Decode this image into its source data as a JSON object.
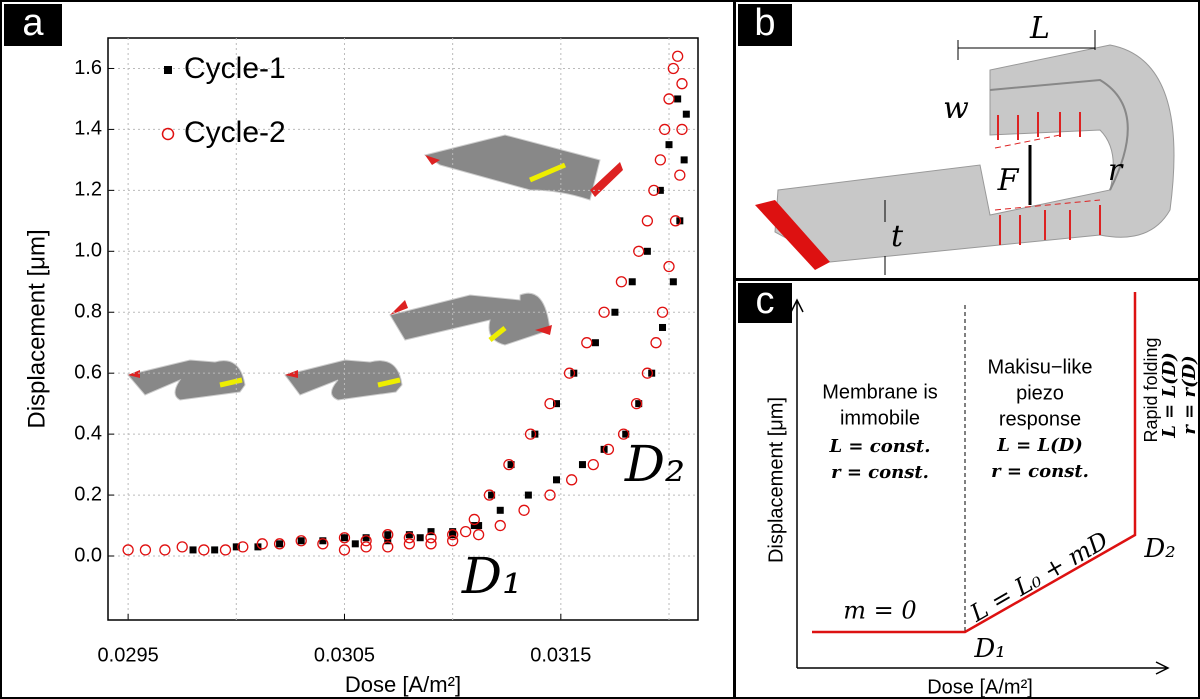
{
  "chart_data": {
    "type": "scatter",
    "xlabel": "Dose [A/m²]",
    "ylabel": "Displacement [μm]",
    "xlim": [
      0.029407,
      0.032134
    ],
    "ylim": [
      -0.21,
      1.7
    ],
    "xticks": [
      0.0295,
      0.0305,
      0.0315
    ],
    "xgrid_minor": [
      0.03,
      0.031,
      0.032
    ],
    "yticks": [
      {
        "value": 0,
        "label": "0.0"
      },
      {
        "value": 0.2,
        "label": "0.2"
      },
      {
        "value": 0.4,
        "label": "0.4"
      },
      {
        "value": 0.6,
        "label": "0.6"
      },
      {
        "value": 0.8,
        "label": "0.8"
      },
      {
        "value": 1,
        "label": "1.0"
      },
      {
        "value": 1.2,
        "label": "1.2"
      },
      {
        "value": 1.4,
        "label": "1.4"
      },
      {
        "value": 1.6,
        "label": "1.6"
      }
    ],
    "grid": true,
    "legend": "upper left",
    "annotations": [
      "D₁",
      "D₂"
    ],
    "series": [
      {
        "name": "Cycle-1",
        "color": "#000000",
        "marker": "square",
        "x": [
          0.0298,
          0.0299,
          0.03,
          0.0301,
          0.0302,
          0.0303,
          0.0304,
          0.0305,
          0.0306,
          0.0307,
          0.0308,
          0.0309,
          0.031,
          0.0311,
          0.03118,
          0.03127,
          0.03138,
          0.03148,
          0.03156,
          0.03166,
          0.03175,
          0.03183,
          0.0319,
          0.03196,
          0.032,
          0.03204,
          0.03208,
          0.03207,
          0.03205,
          0.03202,
          0.03197,
          0.03192,
          0.03186,
          0.0318,
          0.0317,
          0.0316,
          0.03148,
          0.03135,
          0.03122,
          0.03112,
          0.031,
          0.03085,
          0.0307,
          0.03055
        ],
        "values": [
          0.02,
          0.02,
          0.03,
          0.03,
          0.04,
          0.05,
          0.05,
          0.06,
          0.06,
          0.07,
          0.07,
          0.08,
          0.08,
          0.1,
          0.2,
          0.3,
          0.4,
          0.5,
          0.6,
          0.7,
          0.8,
          0.9,
          1.0,
          1.2,
          1.35,
          1.5,
          1.45,
          1.3,
          1.1,
          0.9,
          0.75,
          0.6,
          0.5,
          0.4,
          0.35,
          0.3,
          0.25,
          0.2,
          0.15,
          0.1,
          0.07,
          0.06,
          0.05,
          0.04
        ]
      },
      {
        "name": "Cycle-2",
        "color": "#e01010",
        "marker": "circle",
        "x": [
          0.0295,
          0.02958,
          0.02967,
          0.02975,
          0.02985,
          0.02995,
          0.03003,
          0.03012,
          0.0302,
          0.0303,
          0.0304,
          0.0305,
          0.0306,
          0.0307,
          0.0308,
          0.0309,
          0.031,
          0.03106,
          0.0311,
          0.03117,
          0.03126,
          0.03136,
          0.03145,
          0.03154,
          0.03162,
          0.0317,
          0.03178,
          0.03186,
          0.0319,
          0.03193,
          0.03196,
          0.03198,
          0.032,
          0.03202,
          0.03204,
          0.03206,
          0.03206,
          0.03205,
          0.03203,
          0.032,
          0.03197,
          0.03194,
          0.0319,
          0.03185,
          0.03179,
          0.03172,
          0.03165,
          0.03155,
          0.03145,
          0.03133,
          0.03122,
          0.03112,
          0.031,
          0.0309,
          0.0308,
          0.0307,
          0.0306,
          0.0305
        ],
        "values": [
          0.02,
          0.02,
          0.02,
          0.03,
          0.02,
          0.02,
          0.03,
          0.04,
          0.04,
          0.05,
          0.04,
          0.06,
          0.05,
          0.07,
          0.06,
          0.06,
          0.07,
          0.08,
          0.12,
          0.2,
          0.3,
          0.4,
          0.5,
          0.6,
          0.7,
          0.8,
          0.9,
          1.0,
          1.1,
          1.2,
          1.3,
          1.4,
          1.5,
          1.6,
          1.64,
          1.55,
          1.4,
          1.25,
          1.1,
          0.95,
          0.8,
          0.7,
          0.6,
          0.5,
          0.4,
          0.35,
          0.3,
          0.25,
          0.2,
          0.15,
          0.1,
          0.07,
          0.05,
          0.04,
          0.04,
          0.03,
          0.03,
          0.02
        ]
      }
    ]
  },
  "panel_labels": [
    "a",
    "b",
    "c"
  ],
  "panel_b": {
    "labels": [
      "L",
      "w",
      "F",
      "r",
      "t"
    ]
  },
  "panel_c": {
    "xlabel": "Dose [A/m²]",
    "ylabel": "Displacement [μm]",
    "region_1": [
      "Membrane is",
      "immobile"
    ],
    "region_1_eqs": [
      "L = const.",
      "r = const."
    ],
    "region_2": [
      "Makisu−like",
      "piezo",
      "response"
    ],
    "region_2_eqs": [
      "L = L(D)",
      "r = const."
    ],
    "region_3": "Rapid folding",
    "region_3_eqs": [
      "L = L(D)",
      "r = r(D)"
    ],
    "m_label": "m = 0",
    "line_label": "L = L₀ + mD",
    "points": [
      "D₁",
      "D₂"
    ]
  }
}
